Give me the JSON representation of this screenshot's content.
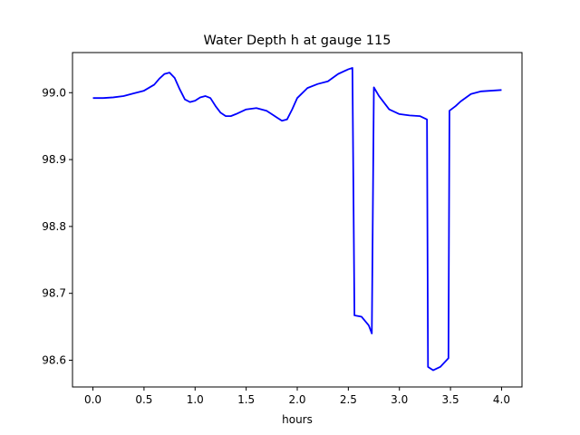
{
  "chart_data": {
    "type": "line",
    "title": "Water Depth h at gauge 115",
    "xlabel": "hours",
    "ylabel": "",
    "xlim": [
      -0.2,
      4.2
    ],
    "ylim": [
      98.56,
      99.06
    ],
    "xticks": [
      0.0,
      0.5,
      1.0,
      1.5,
      2.0,
      2.5,
      3.0,
      3.5,
      4.0
    ],
    "xtick_labels": [
      "0.0",
      "0.5",
      "1.0",
      "1.5",
      "2.0",
      "2.5",
      "3.0",
      "3.5",
      "4.0"
    ],
    "yticks": [
      98.6,
      98.7,
      98.8,
      98.9,
      99.0
    ],
    "ytick_labels": [
      "98.6",
      "98.7",
      "98.8",
      "98.9",
      "99.0"
    ],
    "grid": false,
    "line_color": "#0000ff",
    "series": [
      {
        "x": [
          0.0,
          0.1,
          0.2,
          0.3,
          0.4,
          0.5,
          0.6,
          0.65,
          0.7,
          0.75,
          0.8,
          0.85,
          0.9,
          0.95,
          1.0,
          1.05,
          1.1,
          1.15,
          1.2,
          1.25,
          1.3,
          1.35,
          1.4,
          1.5,
          1.6,
          1.7,
          1.8,
          1.85,
          1.9,
          1.95,
          2.0,
          2.1,
          2.2,
          2.3,
          2.4,
          2.5,
          2.54,
          2.56,
          2.63,
          2.7,
          2.73,
          2.75,
          2.8,
          2.9,
          3.0,
          3.1,
          3.2,
          3.27,
          3.28,
          3.33,
          3.4,
          3.48,
          3.49,
          3.55,
          3.6,
          3.7,
          3.8,
          3.9,
          4.0
        ],
        "y": [
          98.992,
          98.992,
          98.993,
          98.995,
          98.999,
          99.003,
          99.012,
          99.021,
          99.028,
          99.03,
          99.022,
          99.005,
          98.99,
          98.986,
          98.988,
          98.993,
          98.995,
          98.992,
          98.98,
          98.97,
          98.965,
          98.965,
          98.968,
          98.975,
          98.977,
          98.973,
          98.963,
          98.958,
          98.96,
          98.975,
          98.992,
          99.007,
          99.013,
          99.017,
          99.028,
          99.035,
          99.037,
          98.667,
          98.665,
          98.652,
          98.64,
          99.008,
          98.995,
          98.975,
          98.968,
          98.966,
          98.965,
          98.96,
          98.59,
          98.585,
          98.59,
          98.603,
          98.973,
          98.98,
          98.987,
          98.998,
          99.002,
          99.003,
          99.004
        ]
      }
    ]
  }
}
